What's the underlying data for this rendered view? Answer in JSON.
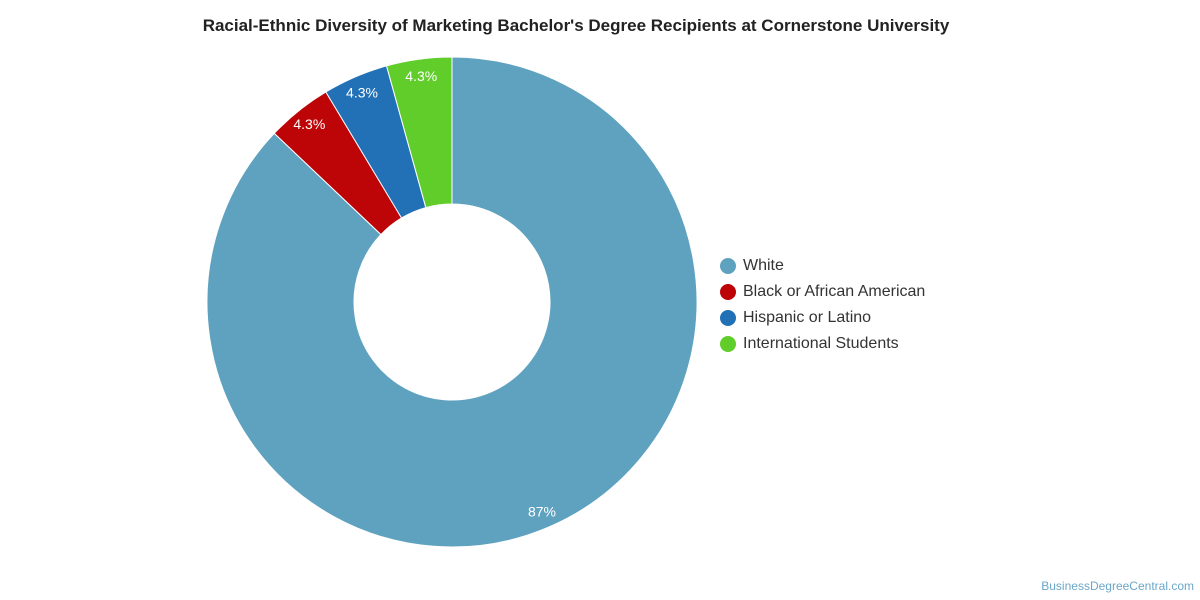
{
  "chart_data": {
    "type": "pie",
    "title": "Racial-Ethnic Diversity of Marketing Bachelor's Degree Recipients at Cornerstone University",
    "donut": true,
    "legend_position": "right",
    "series": [
      {
        "name": "White",
        "value": 87,
        "label": "87%",
        "color": "#5fa2bf"
      },
      {
        "name": "Black or African American",
        "value": 4.3,
        "label": "4.3%",
        "color": "#bd0407"
      },
      {
        "name": "Hispanic or Latino",
        "value": 4.3,
        "label": "4.3%",
        "color": "#2271b7"
      },
      {
        "name": "International Students",
        "value": 4.3,
        "label": "4.3%",
        "color": "#61cd2a"
      }
    ]
  },
  "credit": "BusinessDegreeCentral.com"
}
